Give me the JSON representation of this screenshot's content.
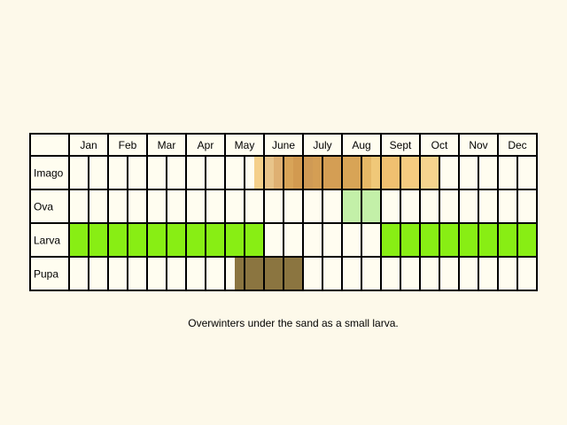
{
  "chart_data": {
    "type": "table",
    "title": "",
    "months": [
      "Jan",
      "Feb",
      "Mar",
      "Apr",
      "May",
      "June",
      "July",
      "Aug",
      "Sept",
      "Oct",
      "Nov",
      "Dec"
    ],
    "columns_per_month": 2,
    "rows": [
      {
        "label": "Imago",
        "segments": [
          {
            "from": 9.5,
            "to": 10,
            "color": "#f5d08a"
          },
          {
            "from": 10,
            "to": 10.5,
            "color": "#e8c48a"
          },
          {
            "from": 10.5,
            "to": 11,
            "color": "#dfb072"
          },
          {
            "from": 11,
            "to": 11.5,
            "color": "#d8a458"
          },
          {
            "from": 11.5,
            "to": 12,
            "color": "#d29a50"
          },
          {
            "from": 12,
            "to": 12.5,
            "color": "#cf9a55"
          },
          {
            "from": 12.5,
            "to": 13,
            "color": "#d49e54"
          },
          {
            "from": 13,
            "to": 14,
            "color": "#d49e54"
          },
          {
            "from": 14,
            "to": 15,
            "color": "#d8a456"
          },
          {
            "from": 15,
            "to": 15.5,
            "color": "#e6b866"
          },
          {
            "from": 15.5,
            "to": 16,
            "color": "#f0c878"
          },
          {
            "from": 16,
            "to": 17,
            "color": "#f0c070"
          },
          {
            "from": 17,
            "to": 18,
            "color": "#f5cc80"
          },
          {
            "from": 18,
            "to": 19,
            "color": "#f6d48e"
          }
        ]
      },
      {
        "label": "Ova",
        "segments": [
          {
            "from": 14,
            "to": 16,
            "color": "#c3f0a8"
          }
        ]
      },
      {
        "label": "Larva",
        "segments": [
          {
            "from": 0,
            "to": 10,
            "color": "#88ee14"
          },
          {
            "from": 16,
            "to": 24,
            "color": "#88ee14"
          }
        ]
      },
      {
        "label": "Pupa",
        "segments": [
          {
            "from": 8.5,
            "to": 12,
            "color": "#8b7540"
          }
        ]
      }
    ],
    "note": "Overwinters under the sand as a small larva."
  }
}
